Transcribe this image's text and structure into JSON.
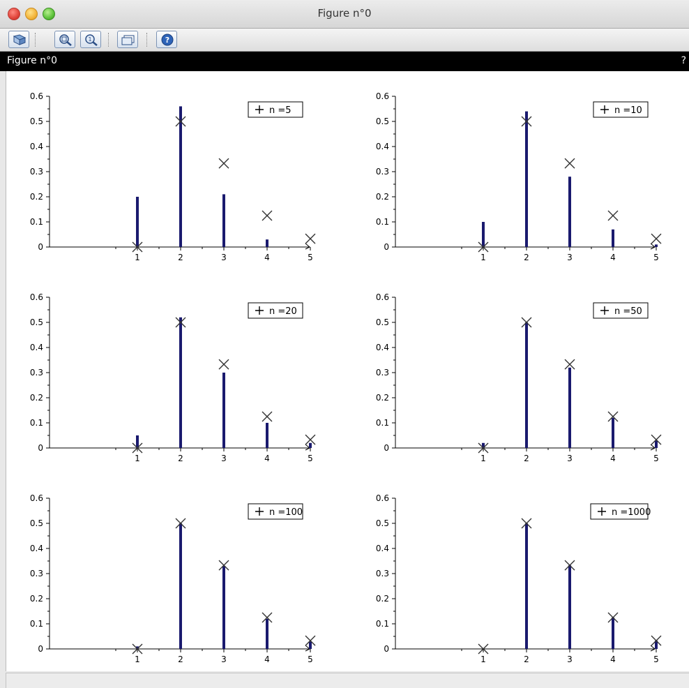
{
  "window": {
    "title": "Figure n°0"
  },
  "figure_bar": {
    "label": "Figure n°0",
    "help": "?"
  },
  "toolbar": {
    "buttons": [
      {
        "icon": "rotate-icon"
      },
      {
        "icon": "zoom-in-icon"
      },
      {
        "icon": "zoom-out-icon"
      },
      {
        "icon": "datatip-icon"
      },
      {
        "icon": "help-icon"
      }
    ]
  },
  "colors": {
    "bar": "#1a1a6e",
    "marker": "#333333",
    "axis": "#000000"
  },
  "chart_data": [
    {
      "type": "bar",
      "legend": "n =5",
      "categories": [
        1,
        2,
        3,
        4,
        5
      ],
      "values": [
        0.2,
        0.56,
        0.21,
        0.03,
        0.0
      ],
      "expected": [
        0.0,
        0.5,
        0.333,
        0.125,
        0.033
      ],
      "ylim": [
        0,
        0.6
      ],
      "yticks": [
        "0",
        "0.1",
        "0.2",
        "0.3",
        "0.4",
        "0.5",
        "0.6"
      ],
      "xticks": [
        "1",
        "2",
        "3",
        "4",
        "5"
      ],
      "legend_position": "top-right"
    },
    {
      "type": "bar",
      "legend": "n =10",
      "categories": [
        1,
        2,
        3,
        4,
        5
      ],
      "values": [
        0.1,
        0.54,
        0.28,
        0.07,
        0.01
      ],
      "expected": [
        0.0,
        0.5,
        0.333,
        0.125,
        0.033
      ],
      "ylim": [
        0,
        0.6
      ],
      "yticks": [
        "0",
        "0.1",
        "0.2",
        "0.3",
        "0.4",
        "0.5",
        "0.6"
      ],
      "xticks": [
        "1",
        "2",
        "3",
        "4",
        "5"
      ],
      "legend_position": "top-right"
    },
    {
      "type": "bar",
      "legend": "n =20",
      "categories": [
        1,
        2,
        3,
        4,
        5
      ],
      "values": [
        0.05,
        0.52,
        0.3,
        0.1,
        0.02
      ],
      "expected": [
        0.0,
        0.5,
        0.333,
        0.125,
        0.033
      ],
      "ylim": [
        0,
        0.6
      ],
      "yticks": [
        "0",
        "0.1",
        "0.2",
        "0.3",
        "0.4",
        "0.5",
        "0.6"
      ],
      "xticks": [
        "1",
        "2",
        "3",
        "4",
        "5"
      ],
      "legend_position": "top-right"
    },
    {
      "type": "bar",
      "legend": "n =50",
      "categories": [
        1,
        2,
        3,
        4,
        5
      ],
      "values": [
        0.02,
        0.5,
        0.32,
        0.12,
        0.03
      ],
      "expected": [
        0.0,
        0.5,
        0.333,
        0.125,
        0.033
      ],
      "ylim": [
        0,
        0.6
      ],
      "yticks": [
        "0",
        "0.1",
        "0.2",
        "0.3",
        "0.4",
        "0.5",
        "0.6"
      ],
      "xticks": [
        "1",
        "2",
        "3",
        "4",
        "5"
      ],
      "legend_position": "top-right"
    },
    {
      "type": "bar",
      "legend": "n =100",
      "categories": [
        1,
        2,
        3,
        4,
        5
      ],
      "values": [
        0.01,
        0.5,
        0.33,
        0.12,
        0.03
      ],
      "expected": [
        0.0,
        0.5,
        0.333,
        0.125,
        0.033
      ],
      "ylim": [
        0,
        0.6
      ],
      "yticks": [
        "0",
        "0.1",
        "0.2",
        "0.3",
        "0.4",
        "0.5",
        "0.6"
      ],
      "xticks": [
        "1",
        "2",
        "3",
        "4",
        "5"
      ],
      "legend_position": "top-right"
    },
    {
      "type": "bar",
      "legend": "n =1000",
      "categories": [
        1,
        2,
        3,
        4,
        5
      ],
      "values": [
        0.0,
        0.5,
        0.333,
        0.125,
        0.033
      ],
      "expected": [
        0.0,
        0.5,
        0.333,
        0.125,
        0.033
      ],
      "ylim": [
        0,
        0.6
      ],
      "yticks": [
        "0",
        "0.1",
        "0.2",
        "0.3",
        "0.4",
        "0.5",
        "0.6"
      ],
      "xticks": [
        "1",
        "2",
        "3",
        "4",
        "5"
      ],
      "legend_position": "top-right"
    }
  ]
}
